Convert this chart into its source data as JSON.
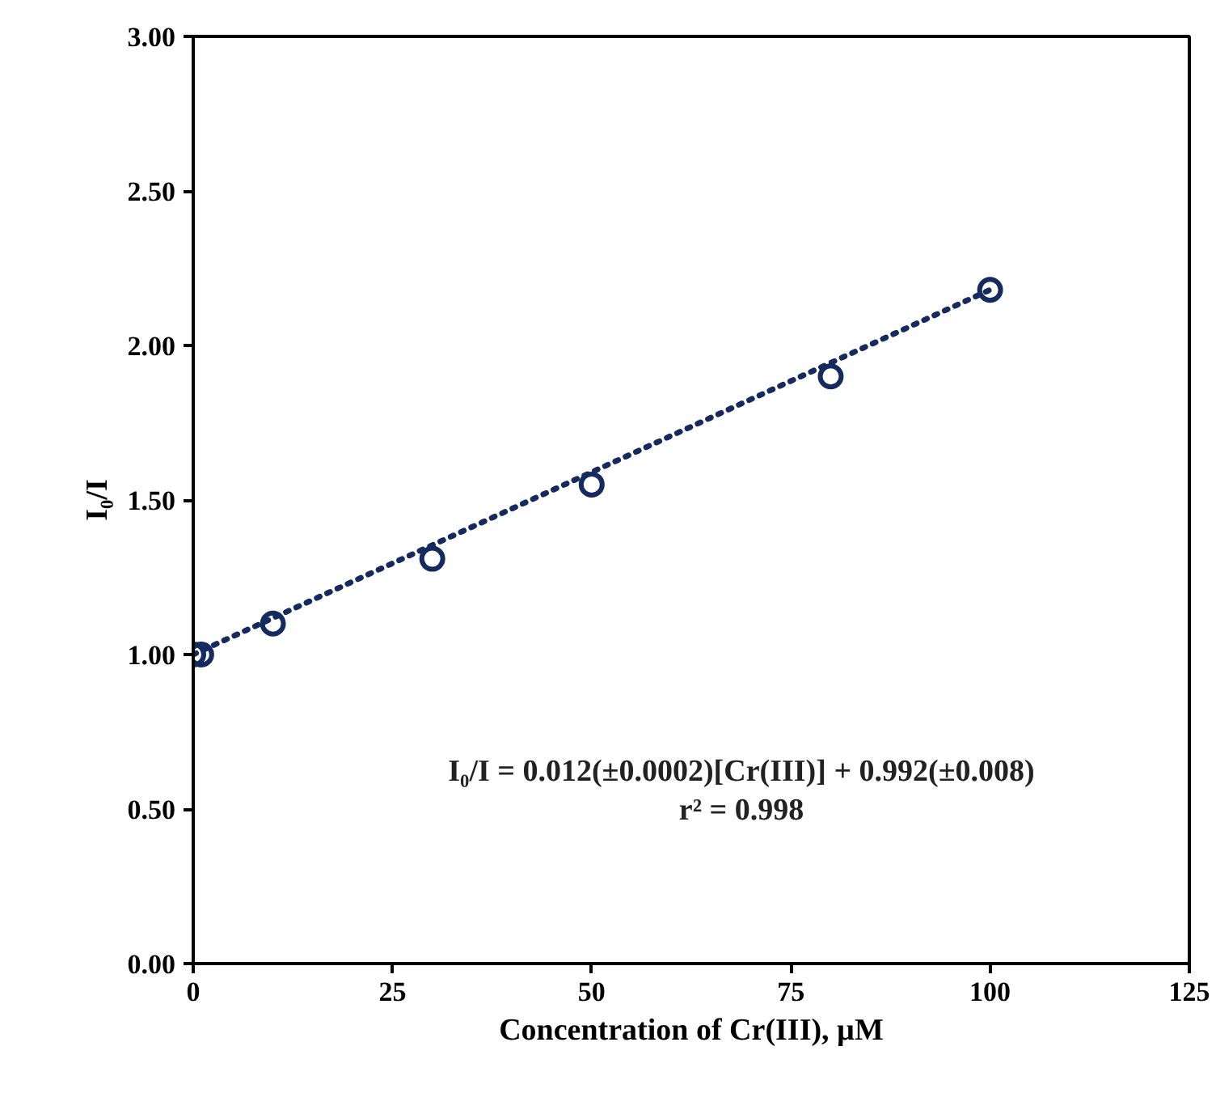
{
  "chart_data": {
    "type": "scatter",
    "xlabel": "Concentration of Cr(III), µM",
    "ylabel": "I₀/I",
    "series": [
      {
        "type": "scatter",
        "color": "#152a5e",
        "x": [
          0,
          1,
          10,
          30,
          50,
          80,
          100
        ],
        "values": [
          1.0,
          1.0,
          1.1,
          1.31,
          1.55,
          1.9,
          2.18
        ],
        "marker": "circle"
      },
      {
        "type": "line",
        "color": "#152a5e",
        "x": [
          0,
          100
        ],
        "values": [
          1.0,
          2.18
        ],
        "line_style": "dotted"
      }
    ],
    "xlim": [
      0,
      125
    ],
    "xticks": [
      0,
      25,
      50,
      75,
      100,
      125
    ],
    "ylim": [
      0,
      3
    ],
    "yticks": [
      {
        "value": 0,
        "label": "0.00"
      },
      {
        "value": 0.5,
        "label": "0.50"
      },
      {
        "value": 1,
        "label": "1.00"
      },
      {
        "value": 1.5,
        "label": "1.50"
      },
      {
        "value": 2,
        "label": "2.00"
      },
      {
        "value": 2.5,
        "label": "2.50"
      },
      {
        "value": 3,
        "label": "3.00"
      }
    ],
    "grid": false,
    "annotations": [
      "I₀/I = 0.012(±0.0002)[Cr(III)] + 0.992(±0.008)",
      "r² = 0.998"
    ]
  }
}
